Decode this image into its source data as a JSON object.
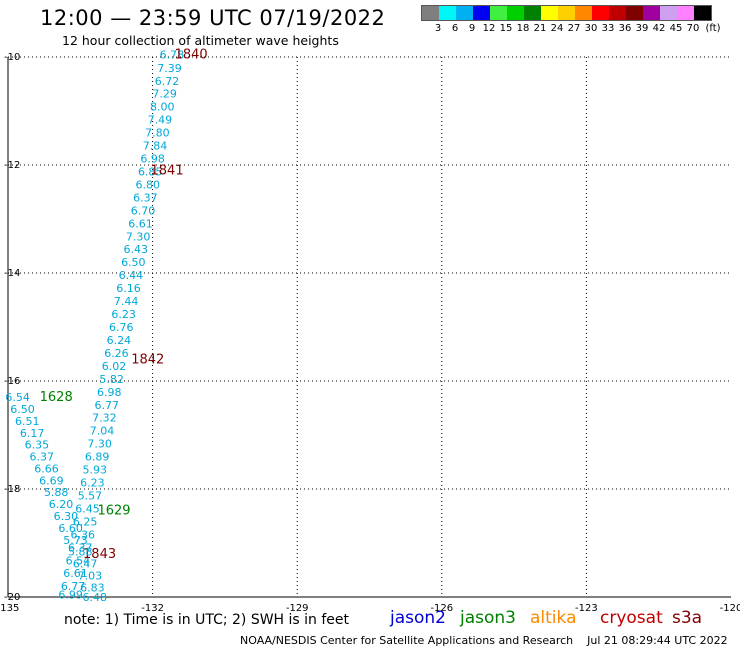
{
  "header": {
    "title": "12:00 — 23:59 UTC 07/19/2022",
    "subtitle": "12 hour collection of altimeter wave heights"
  },
  "legend": {
    "unit": "(ft)",
    "colors": [
      "#7f7f7f",
      "#00f7f7",
      "#00b0f0",
      "#0000f0",
      "#40f040",
      "#00d000",
      "#008000",
      "#ffff00",
      "#ffd000",
      "#ff8800",
      "#ff0000",
      "#c00000",
      "#800000",
      "#a000a0",
      "#d0a0f0",
      "#ff80ff",
      "#000000"
    ],
    "labels": [
      "3",
      "6",
      "9",
      "12",
      "15",
      "18",
      "21",
      "24",
      "27",
      "30",
      "33",
      "36",
      "39",
      "42",
      "45",
      "70"
    ]
  },
  "footer": {
    "note": "note:  1) Time is in UTC;  2) SWH is in feet",
    "satellites": [
      {
        "name": "jason2",
        "color": "#0000d0"
      },
      {
        "name": "jason3",
        "color": "#008000"
      },
      {
        "name": "altika",
        "color": "#ff8800"
      },
      {
        "name": "cryosat",
        "color": "#c00000"
      },
      {
        "name": "s3a",
        "color": "#800000"
      }
    ],
    "credit": "NOAA/NESDIS Center for Satellite Applications and Research    Jul 21 08:29:44 UTC 2022"
  },
  "chart_data": {
    "type": "scatter",
    "title": "12:00 — 23:59 UTC 07/19/2022",
    "subtitle": "12 hour collection of altimeter wave heights",
    "x_ticks": [
      "-135",
      "-132",
      "-129",
      "-126",
      "-123",
      "-120"
    ],
    "y_ticks": [
      "-10",
      "-12",
      "-14",
      "-16",
      "-18",
      "-20"
    ],
    "xlim": [
      -135,
      -120
    ],
    "ylim": [
      -20,
      -10
    ],
    "grid": "dotted",
    "point_color": "#00a8d8",
    "time_label_color_s3a": "#800000",
    "time_label_color_jason3": "#008000",
    "tracks": [
      {
        "satellite": "s3a",
        "points": [
          {
            "lon": -131.6,
            "lat": -9.95,
            "swh": "6.78"
          },
          {
            "lon": -131.65,
            "lat": -10.2,
            "swh": "7.39"
          },
          {
            "lon": -131.7,
            "lat": -10.44,
            "swh": "6.72"
          },
          {
            "lon": -131.75,
            "lat": -10.68,
            "swh": "7.29"
          },
          {
            "lon": -131.8,
            "lat": -10.92,
            "swh": "8.00"
          },
          {
            "lon": -131.85,
            "lat": -11.16,
            "swh": "7.49"
          },
          {
            "lon": -131.9,
            "lat": -11.4,
            "swh": "7.80"
          },
          {
            "lon": -131.95,
            "lat": -11.64,
            "swh": "7.84"
          },
          {
            "lon": -132.0,
            "lat": -11.88,
            "swh": "6.98"
          },
          {
            "lon": -132.05,
            "lat": -12.12,
            "swh": "6.85"
          },
          {
            "lon": -132.1,
            "lat": -12.36,
            "swh": "6.80"
          },
          {
            "lon": -132.15,
            "lat": -12.6,
            "swh": "6.37"
          },
          {
            "lon": -132.2,
            "lat": -12.84,
            "swh": "6.70"
          },
          {
            "lon": -132.25,
            "lat": -13.08,
            "swh": "6.61"
          },
          {
            "lon": -132.3,
            "lat": -13.32,
            "swh": "7.30"
          },
          {
            "lon": -132.35,
            "lat": -13.56,
            "swh": "6.43"
          },
          {
            "lon": -132.4,
            "lat": -13.8,
            "swh": "6.50"
          },
          {
            "lon": -132.45,
            "lat": -14.04,
            "swh": "6.44"
          },
          {
            "lon": -132.5,
            "lat": -14.28,
            "swh": "6.16"
          },
          {
            "lon": -132.55,
            "lat": -14.52,
            "swh": "7.44"
          },
          {
            "lon": -132.6,
            "lat": -14.76,
            "swh": "6.23"
          },
          {
            "lon": -132.65,
            "lat": -15.0,
            "swh": "6.76"
          },
          {
            "lon": -132.7,
            "lat": -15.24,
            "swh": "6.24"
          },
          {
            "lon": -132.75,
            "lat": -15.48,
            "swh": "6.26"
          },
          {
            "lon": -132.8,
            "lat": -15.72,
            "swh": "6.02"
          },
          {
            "lon": -132.85,
            "lat": -15.96,
            "swh": "5.82"
          },
          {
            "lon": -132.9,
            "lat": -16.2,
            "swh": "6.98"
          },
          {
            "lon": -132.95,
            "lat": -16.44,
            "swh": "6.77"
          },
          {
            "lon": -133.0,
            "lat": -16.68,
            "swh": "7.32"
          },
          {
            "lon": -133.05,
            "lat": -16.92,
            "swh": "7.04"
          },
          {
            "lon": -133.1,
            "lat": -17.16,
            "swh": "7.30"
          },
          {
            "lon": -133.15,
            "lat": -17.4,
            "swh": "6.89"
          },
          {
            "lon": -133.2,
            "lat": -17.64,
            "swh": "5.93"
          },
          {
            "lon": -133.25,
            "lat": -17.88,
            "swh": "6.23"
          },
          {
            "lon": -133.3,
            "lat": -18.12,
            "swh": "5.57"
          },
          {
            "lon": -133.35,
            "lat": -18.36,
            "swh": "6.45"
          },
          {
            "lon": -133.4,
            "lat": -18.6,
            "swh": "6.25"
          },
          {
            "lon": -133.45,
            "lat": -18.84,
            "swh": "6.36"
          },
          {
            "lon": -133.5,
            "lat": -19.08,
            "swh": "6.37"
          },
          {
            "lon": -133.55,
            "lat": -19.32,
            "swh": "6.54"
          },
          {
            "lon": -133.6,
            "lat": -19.56,
            "swh": "6.61"
          },
          {
            "lon": -133.65,
            "lat": -19.8,
            "swh": "6.77"
          },
          {
            "lon": -133.7,
            "lat": -19.95,
            "swh": "6.99"
          }
        ],
        "time_labels": [
          {
            "text": "1840",
            "lon": -131.2,
            "lat": -9.95
          },
          {
            "text": "1841",
            "lon": -131.7,
            "lat": -12.1
          },
          {
            "text": "1842",
            "lon": -132.1,
            "lat": -15.6
          },
          {
            "text": "1843",
            "lon": -133.1,
            "lat": -19.2
          }
        ]
      },
      {
        "satellite": "jason3",
        "points": [
          {
            "lon": -134.8,
            "lat": -16.3,
            "swh": "6.54"
          },
          {
            "lon": -134.7,
            "lat": -16.52,
            "swh": "6.50"
          },
          {
            "lon": -134.6,
            "lat": -16.74,
            "swh": "6.51"
          },
          {
            "lon": -134.5,
            "lat": -16.96,
            "swh": "6.17"
          },
          {
            "lon": -134.4,
            "lat": -17.18,
            "swh": "6.35"
          },
          {
            "lon": -134.3,
            "lat": -17.4,
            "swh": "6.37"
          },
          {
            "lon": -134.2,
            "lat": -17.62,
            "swh": "6.66"
          },
          {
            "lon": -134.1,
            "lat": -17.84,
            "swh": "6.69"
          },
          {
            "lon": -134.0,
            "lat": -18.06,
            "swh": "5.88"
          },
          {
            "lon": -133.9,
            "lat": -18.28,
            "swh": "6.20"
          },
          {
            "lon": -133.8,
            "lat": -18.5,
            "swh": "6.30"
          },
          {
            "lon": -133.7,
            "lat": -18.72,
            "swh": "6.60"
          },
          {
            "lon": -133.6,
            "lat": -18.94,
            "swh": "5.73"
          },
          {
            "lon": -133.5,
            "lat": -19.16,
            "swh": "5.88"
          },
          {
            "lon": -133.4,
            "lat": -19.38,
            "swh": "6.47"
          },
          {
            "lon": -133.3,
            "lat": -19.6,
            "swh": "7.03"
          },
          {
            "lon": -133.25,
            "lat": -19.82,
            "swh": "6.83"
          },
          {
            "lon": -133.2,
            "lat": -20.0,
            "swh": "6.48"
          }
        ],
        "time_labels": [
          {
            "text": "1628",
            "lon": -134.0,
            "lat": -16.3
          },
          {
            "text": "1629",
            "lon": -132.8,
            "lat": -18.4
          }
        ]
      }
    ]
  }
}
